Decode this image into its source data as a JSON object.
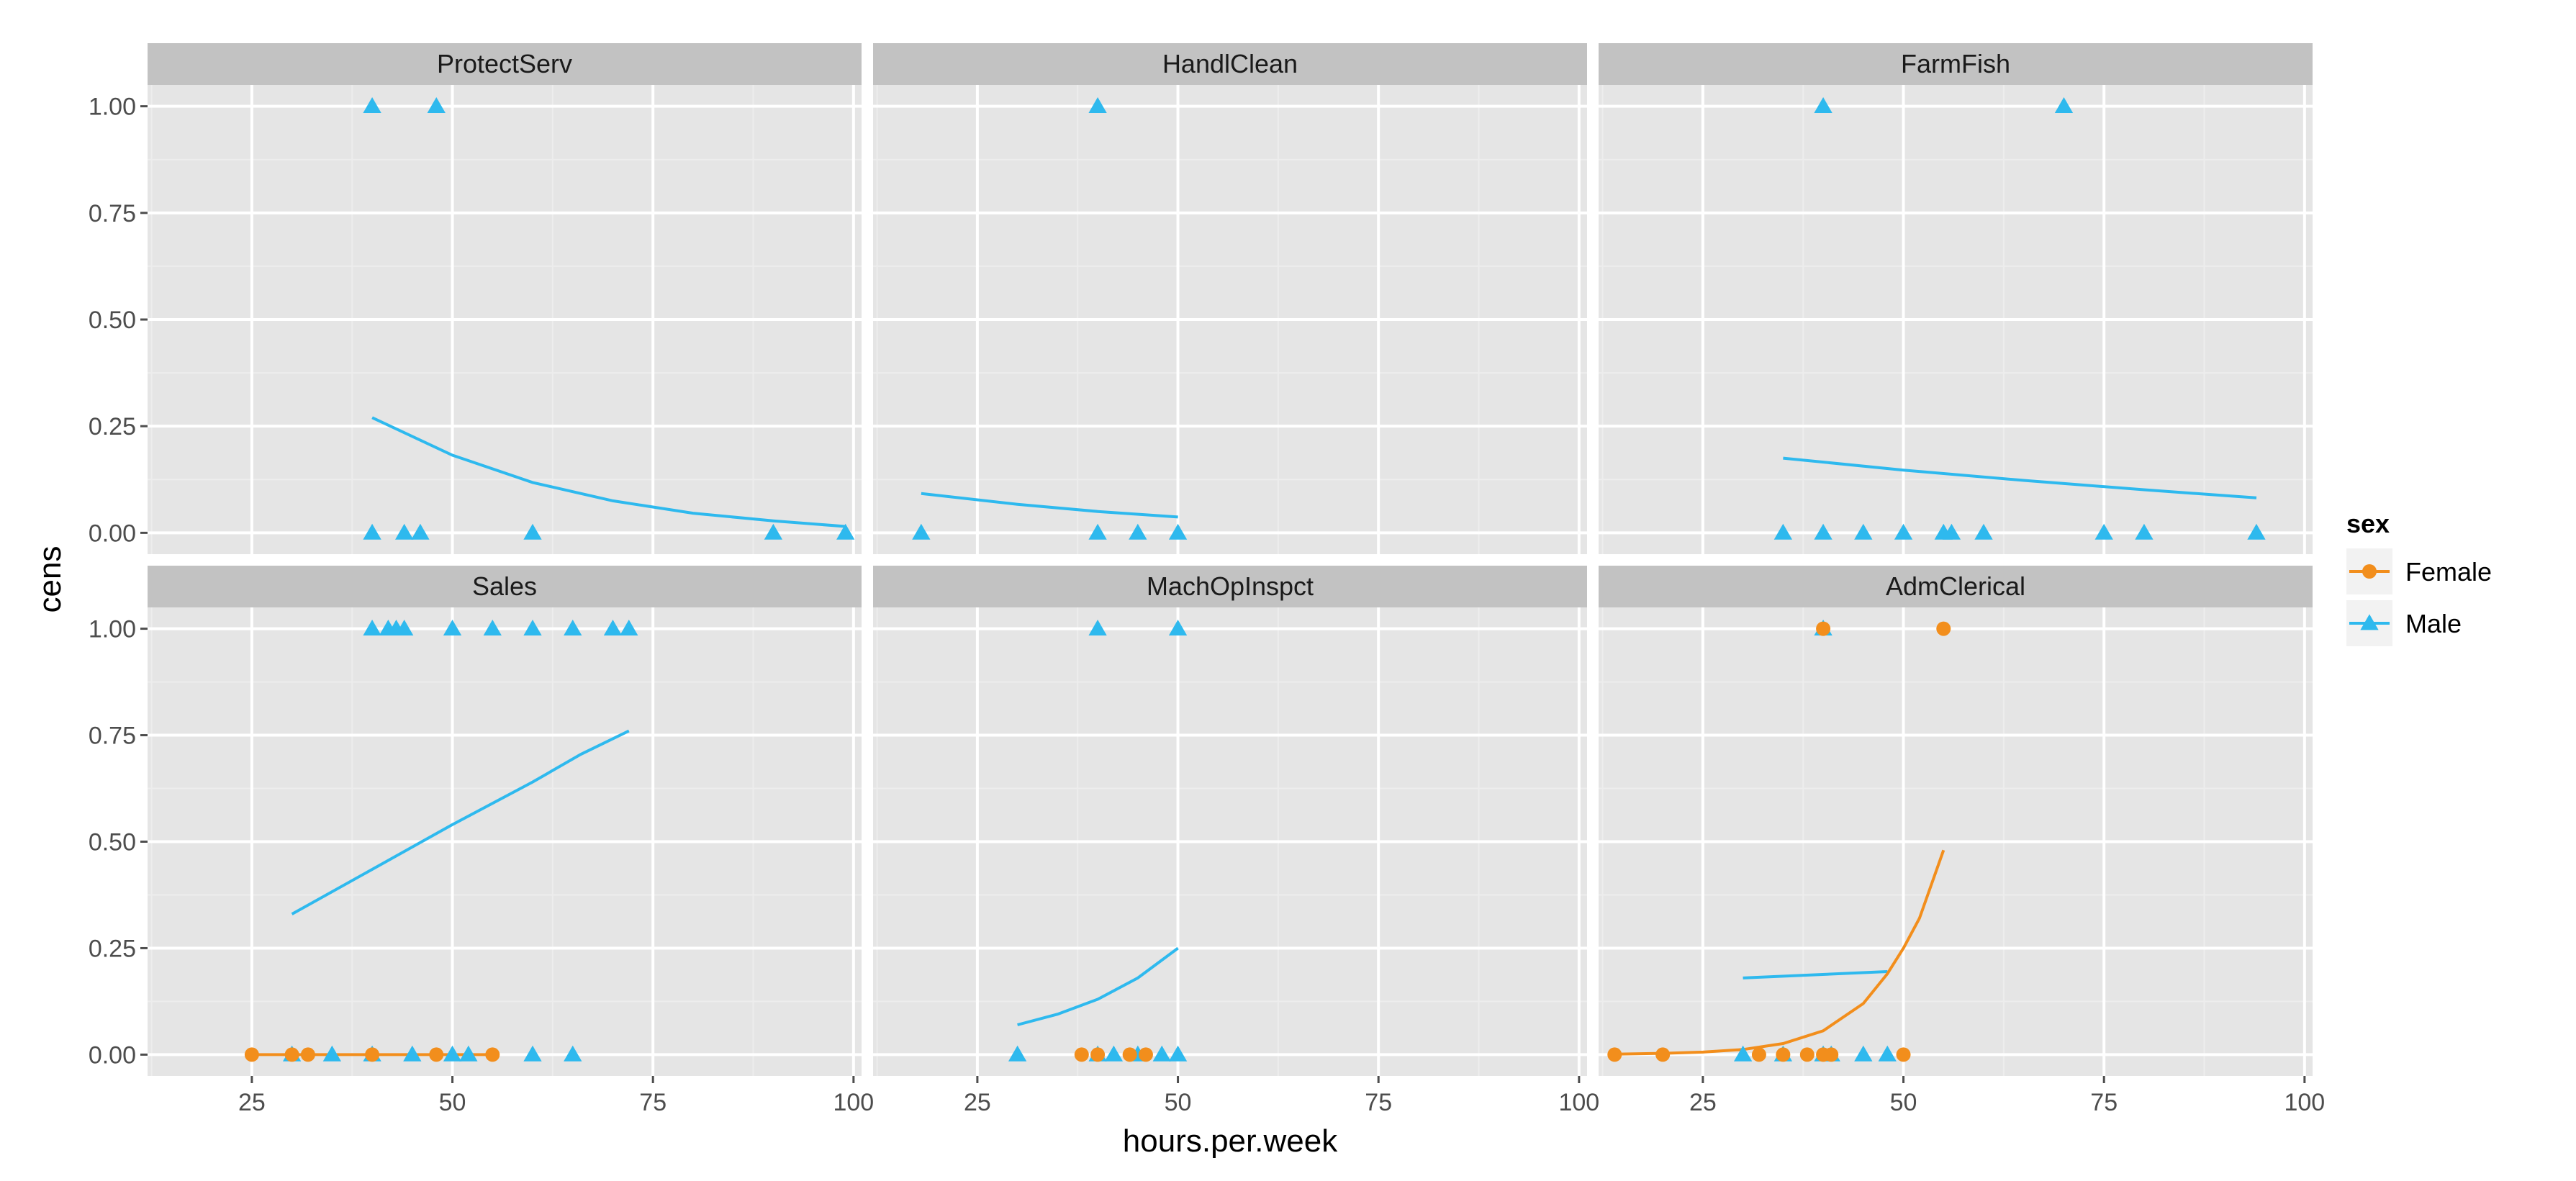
{
  "chart_data": {
    "type": "scatter",
    "layout": "facet_wrap 2 rows x 3 columns",
    "xlabel": "hours.per.week",
    "ylabel": "cens",
    "xlim": [
      12,
      101
    ],
    "ylim": [
      -0.05,
      1.05
    ],
    "x_ticks": [
      25,
      50,
      75,
      100
    ],
    "x_tick_labels": [
      "25",
      "50",
      "75",
      "100"
    ],
    "y_ticks": [
      0,
      0.25,
      0.5,
      0.75,
      1
    ],
    "y_tick_labels": [
      "0.00",
      "0.25",
      "0.50",
      "0.75",
      "1.00"
    ],
    "grid": true,
    "legend": {
      "title": "sex",
      "placement": "right",
      "entries": [
        {
          "name": "Female",
          "color": "#F28E1C",
          "shape": "circle"
        },
        {
          "name": "Male",
          "color": "#2EB9EE",
          "shape": "triangle"
        }
      ]
    },
    "colors": {
      "panel_bg": "#E5E5E5",
      "strip_bg": "#C2C2C2",
      "grid_major": "#FFFFFF",
      "grid_minor": "#EDEDED",
      "female": "#F28E1C",
      "male": "#2EB9EE"
    },
    "facets": [
      {
        "title": "ProtectServ",
        "points": {
          "Male": [
            [
              40,
              1
            ],
            [
              48,
              1
            ],
            [
              40,
              0
            ],
            [
              44,
              0
            ],
            [
              46,
              0
            ],
            [
              60,
              0
            ],
            [
              90,
              0
            ],
            [
              99,
              0
            ]
          ],
          "Female": []
        },
        "fits": {
          "Male": [
            [
              40,
              0.27
            ],
            [
              50,
              0.182
            ],
            [
              60,
              0.118
            ],
            [
              70,
              0.075
            ],
            [
              80,
              0.046
            ],
            [
              90,
              0.028
            ],
            [
              99,
              0.015
            ]
          ]
        }
      },
      {
        "title": "HandlClean",
        "points": {
          "Male": [
            [
              40,
              1
            ],
            [
              18,
              0
            ],
            [
              40,
              0
            ],
            [
              45,
              0
            ],
            [
              50,
              0
            ]
          ],
          "Female": []
        },
        "fits": {
          "Male": [
            [
              18,
              0.092
            ],
            [
              30,
              0.067
            ],
            [
              40,
              0.05
            ],
            [
              50,
              0.037
            ]
          ]
        }
      },
      {
        "title": "FarmFish",
        "points": {
          "Male": [
            [
              40,
              1
            ],
            [
              70,
              1
            ],
            [
              35,
              0
            ],
            [
              40,
              0
            ],
            [
              45,
              0
            ],
            [
              50,
              0
            ],
            [
              55,
              0
            ],
            [
              56,
              0
            ],
            [
              60,
              0
            ],
            [
              75,
              0
            ],
            [
              80,
              0
            ],
            [
              94,
              0
            ]
          ],
          "Female": []
        },
        "fits": {
          "Male": [
            [
              35,
              0.175
            ],
            [
              50,
              0.147
            ],
            [
              65,
              0.123
            ],
            [
              80,
              0.101
            ],
            [
              94,
              0.082
            ]
          ]
        }
      },
      {
        "title": "Sales",
        "points": {
          "Male": [
            [
              40,
              1
            ],
            [
              42,
              1
            ],
            [
              43,
              1
            ],
            [
              44,
              1
            ],
            [
              50,
              1
            ],
            [
              55,
              1
            ],
            [
              60,
              1
            ],
            [
              65,
              1
            ],
            [
              70,
              1
            ],
            [
              72,
              1
            ],
            [
              30,
              0
            ],
            [
              35,
              0
            ],
            [
              40,
              0
            ],
            [
              45,
              0
            ],
            [
              50,
              0
            ],
            [
              52,
              0
            ],
            [
              60,
              0
            ],
            [
              65,
              0
            ]
          ],
          "Female": [
            [
              25,
              0
            ],
            [
              30,
              0
            ],
            [
              32,
              0
            ],
            [
              40,
              0
            ],
            [
              48,
              0
            ],
            [
              55,
              0
            ]
          ]
        },
        "fits": {
          "Male": [
            [
              30,
              0.33
            ],
            [
              40,
              0.435
            ],
            [
              50,
              0.54
            ],
            [
              60,
              0.64
            ],
            [
              66,
              0.705
            ],
            [
              72,
              0.76
            ]
          ],
          "Female": [
            [
              25,
              0
            ],
            [
              55,
              0
            ]
          ]
        }
      },
      {
        "title": "MachOpInspct",
        "points": {
          "Male": [
            [
              40,
              1
            ],
            [
              50,
              1
            ],
            [
              30,
              0
            ],
            [
              40,
              0
            ],
            [
              42,
              0
            ],
            [
              45,
              0
            ],
            [
              48,
              0
            ],
            [
              50,
              0
            ]
          ],
          "Female": [
            [
              38,
              0
            ],
            [
              40,
              0
            ],
            [
              44,
              0
            ],
            [
              46,
              0
            ]
          ]
        },
        "fits": {
          "Male": [
            [
              30,
              0.07
            ],
            [
              35,
              0.095
            ],
            [
              40,
              0.13
            ],
            [
              45,
              0.18
            ],
            [
              50,
              0.25
            ]
          ]
        }
      },
      {
        "title": "AdmClerical",
        "points": {
          "Male": [
            [
              40,
              1
            ],
            [
              30,
              0
            ],
            [
              35,
              0
            ],
            [
              40,
              0
            ],
            [
              41,
              0
            ],
            [
              45,
              0
            ],
            [
              48,
              0
            ]
          ],
          "Female": [
            [
              40,
              1
            ],
            [
              55,
              1
            ],
            [
              14,
              0
            ],
            [
              20,
              0
            ],
            [
              32,
              0
            ],
            [
              35,
              0
            ],
            [
              38,
              0
            ],
            [
              40,
              0
            ],
            [
              41,
              0
            ],
            [
              50,
              0
            ]
          ]
        },
        "fits": {
          "Male": [
            [
              30,
              0.18
            ],
            [
              48,
              0.195
            ]
          ],
          "Female": [
            [
              14,
              0.001
            ],
            [
              20,
              0.003
            ],
            [
              25,
              0.006
            ],
            [
              30,
              0.012
            ],
            [
              35,
              0.026
            ],
            [
              40,
              0.056
            ],
            [
              45,
              0.12
            ],
            [
              48,
              0.19
            ],
            [
              50,
              0.25
            ],
            [
              52,
              0.32
            ],
            [
              55,
              0.48
            ]
          ]
        }
      }
    ]
  }
}
